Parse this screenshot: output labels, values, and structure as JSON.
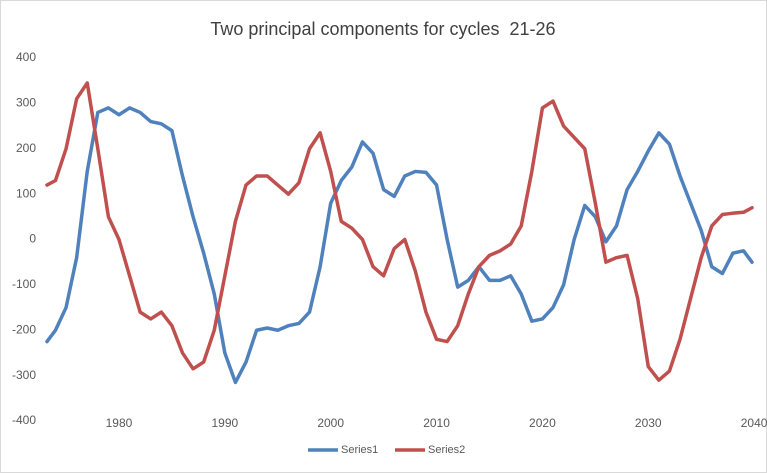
{
  "chart_data": {
    "type": "line",
    "title": "Two principal components for cycles  21-26",
    "x": [
      1973.2,
      1974,
      1975,
      1976,
      1977,
      1978,
      1979,
      1980,
      1981,
      1982,
      1983,
      1984,
      1985,
      1986,
      1987,
      1988,
      1989,
      1990,
      1991,
      1992,
      1993,
      1994,
      1995,
      1996,
      1997,
      1998,
      1999,
      2000,
      2001,
      2002,
      2003,
      2004,
      2005,
      2006,
      2007,
      2008,
      2009,
      2010,
      2011,
      2012,
      2013,
      2014,
      2015,
      2016,
      2017,
      2018,
      2019,
      2020,
      2021,
      2022,
      2023,
      2024,
      2025,
      2026,
      2027,
      2028,
      2029,
      2030,
      2031,
      2032,
      2033,
      2034,
      2035,
      2036,
      2037,
      2038,
      2039,
      2039.8
    ],
    "series": [
      {
        "name": "Series1",
        "color": "#4f81bd",
        "values": [
          -225,
          -200,
          -150,
          -40,
          150,
          280,
          290,
          275,
          290,
          280,
          260,
          255,
          240,
          140,
          50,
          -30,
          -120,
          -250,
          -315,
          -270,
          -200,
          -195,
          -200,
          -190,
          -185,
          -160,
          -60,
          80,
          130,
          160,
          215,
          190,
          110,
          95,
          140,
          150,
          148,
          120,
          0,
          -105,
          -90,
          -60,
          -90,
          -90,
          -80,
          -120,
          -180,
          -175,
          -150,
          -100,
          0,
          75,
          50,
          -5,
          30,
          110,
          150,
          195,
          235,
          210,
          140,
          80,
          20,
          -60,
          -75,
          -30,
          -25,
          -50
        ]
      },
      {
        "name": "Series2",
        "color": "#c0504d",
        "values": [
          120,
          130,
          200,
          310,
          345,
          200,
          50,
          0,
          -80,
          -160,
          -175,
          -160,
          -190,
          -250,
          -285,
          -270,
          -200,
          -80,
          40,
          120,
          140,
          140,
          120,
          100,
          125,
          200,
          235,
          150,
          40,
          25,
          0,
          -60,
          -80,
          -20,
          0,
          -70,
          -160,
          -220,
          -225,
          -190,
          -120,
          -60,
          -35,
          -25,
          -10,
          30,
          150,
          290,
          305,
          250,
          225,
          200,
          80,
          -50,
          -40,
          -35,
          -130,
          -280,
          -310,
          -290,
          -220,
          -130,
          -40,
          30,
          55,
          58,
          60,
          70
        ]
      }
    ],
    "xlim": [
      1973.2,
      2039.8
    ],
    "xticks": [
      1980,
      1990,
      2000,
      2010,
      2020,
      2030,
      2040
    ],
    "ylim": [
      -400,
      400
    ],
    "yticks": [
      -400,
      -300,
      -200,
      -100,
      0,
      100,
      200,
      300,
      400
    ],
    "grid": false,
    "legend": "bottom"
  }
}
